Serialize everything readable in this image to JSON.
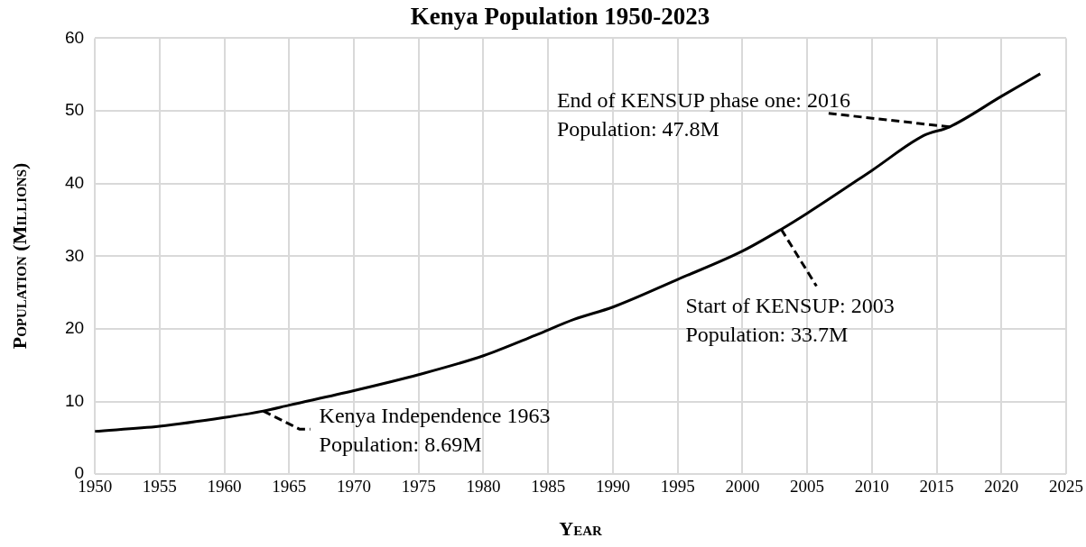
{
  "chart_data": {
    "type": "line",
    "title": "Kenya Population 1950-2023",
    "xlabel": "Year",
    "ylabel": "Population (Millions)",
    "x": [
      1950,
      1955,
      1960,
      1963,
      1965,
      1970,
      1975,
      1980,
      1984,
      1987,
      1990,
      1995,
      2000,
      2003,
      2005,
      2010,
      2014,
      2016,
      2020,
      2023
    ],
    "series": [
      {
        "color": "#000000",
        "values": [
          5.9,
          6.6,
          7.8,
          8.69,
          9.5,
          11.5,
          13.7,
          16.3,
          19.1,
          21.3,
          23.0,
          26.8,
          30.7,
          33.7,
          35.9,
          41.8,
          46.6,
          47.8,
          52.0,
          55.1
        ]
      }
    ],
    "xlim": [
      1950,
      2025
    ],
    "xticks": [
      1950,
      1955,
      1960,
      1965,
      1970,
      1975,
      1980,
      1985,
      1990,
      1995,
      2000,
      2005,
      2010,
      2015,
      2020,
      2025
    ],
    "ylim": [
      0,
      60
    ],
    "yticks": [
      0,
      10,
      20,
      30,
      40,
      50,
      60
    ],
    "grid": true,
    "marker": "none",
    "line_style": "solid",
    "annotations": [
      {
        "text": "Kenya Independence 1963\nPopulation: 8.69M",
        "x": 1963,
        "y": 8.69
      },
      {
        "text": "Start of KENSUP: 2003\nPopulation: 33.7M",
        "x": 2003,
        "y": 33.7
      },
      {
        "text": "End of KENSUP phase one: 2016\nPopulation: 47.8M",
        "x": 2016,
        "y": 47.8
      }
    ]
  }
}
